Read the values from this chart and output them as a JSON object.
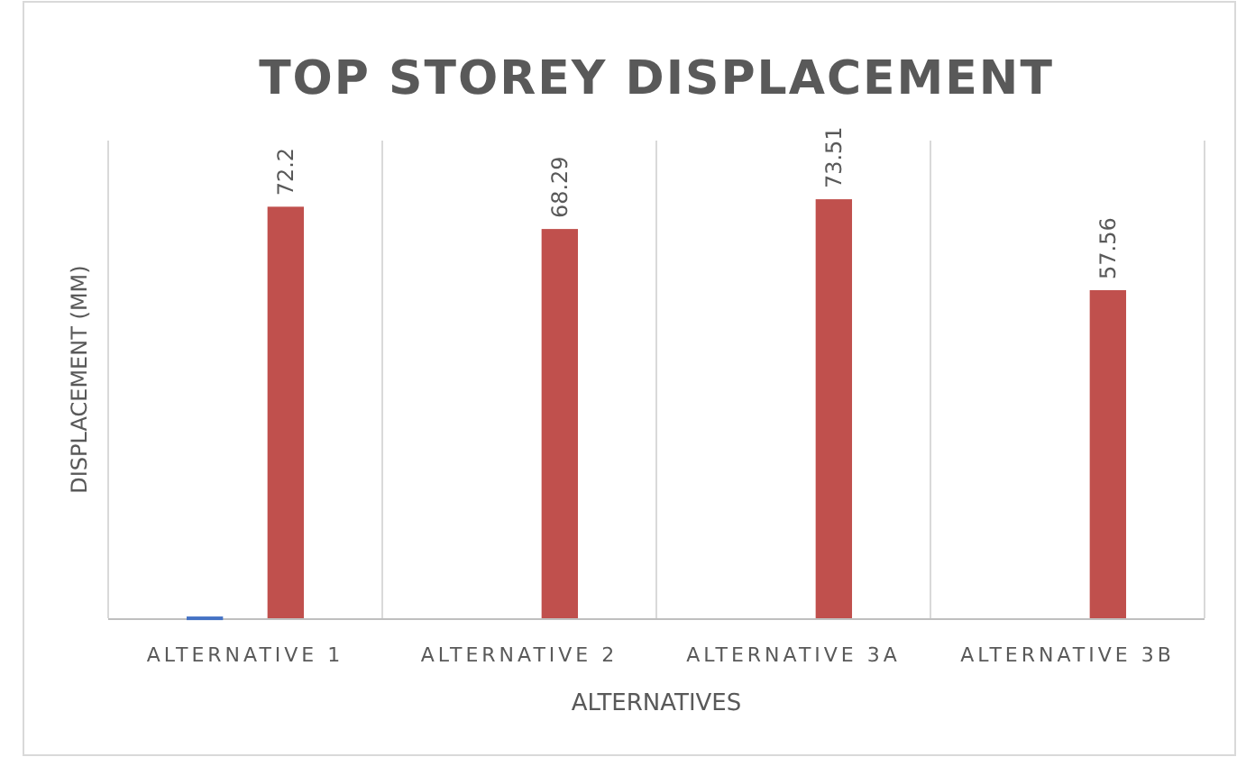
{
  "chart_data": {
    "type": "bar",
    "title": "TOP STOREY DISPLACEMENT",
    "xlabel": "ALTERNATIVES",
    "ylabel": "DISPLACEMENT (MM)",
    "categories": [
      "ALTERNATIVE 1",
      "ALTERNATIVE 2",
      "ALTERNATIVE 3A",
      "ALTERNATIVE 3B"
    ],
    "series": [
      {
        "color": "#4472c4",
        "values": [
          0.3,
          null,
          null,
          null
        ]
      },
      {
        "color": "#c0504d",
        "values": [
          72.2,
          68.29,
          73.51,
          57.56
        ],
        "value_labels": [
          "72.2",
          "68.29",
          "73.51",
          "57.56"
        ]
      }
    ],
    "grid": "x"
  }
}
